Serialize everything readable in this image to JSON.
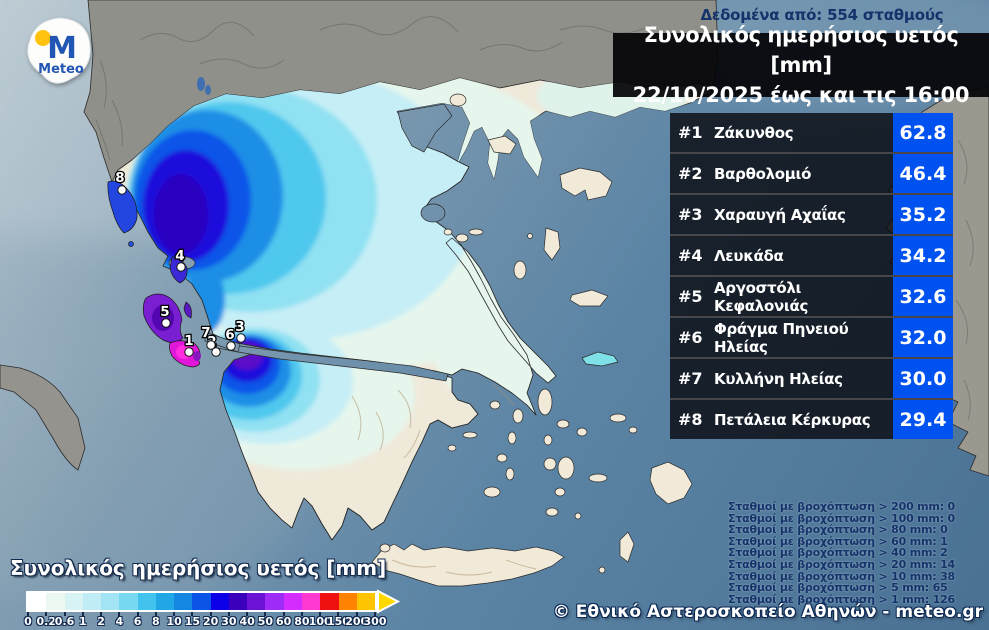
{
  "logo": {
    "brand": "Meteo",
    "letter": "M"
  },
  "header": {
    "stations_note": "Δεδομένα από: 554 σταθμούς",
    "title_line1": "Συνολικός ημερήσιος υετός [mm]",
    "title_line2": "22/10/2025 έως και τις 16:00"
  },
  "ranking": {
    "rows": [
      {
        "rank": "#1",
        "name": "Ζάκυνθος",
        "value": "62.8"
      },
      {
        "rank": "#2",
        "name": "Βαρθολομιό",
        "value": "46.4"
      },
      {
        "rank": "#3",
        "name": "Χαραυγή Αχαΐας",
        "value": "35.2"
      },
      {
        "rank": "#4",
        "name": "Λευκάδα",
        "value": "34.2"
      },
      {
        "rank": "#5",
        "name": "Αργοστόλι Κεφαλονιάς",
        "value": "32.6"
      },
      {
        "rank": "#6",
        "name": "Φράγμα Πηνειού Ηλείας",
        "value": "32.0"
      },
      {
        "rank": "#7",
        "name": "Κυλλήνη Ηλείας",
        "value": "30.0"
      },
      {
        "rank": "#8",
        "name": "Πετάλεια Κέρκυρας",
        "value": "29.4"
      }
    ]
  },
  "stats_lines": [
    "Σταθμοί με βροχόπτωση > 200 mm: 0",
    "Σταθμοί με βροχόπτωση > 100 mm: 0",
    "Σταθμοί με βροχόπτωση > 80 mm: 0",
    "Σταθμοί με βροχόπτωση > 60 mm: 1",
    "Σταθμοί με βροχόπτωση > 40 mm: 2",
    "Σταθμοί με βροχόπτωση > 20 mm: 14",
    "Σταθμοί με βροχόπτωση > 10 mm: 38",
    "Σταθμοί με βροχόπτωση > 5 mm: 65",
    "Σταθμοί με βροχόπτωση > 1 mm: 126"
  ],
  "legend": {
    "title": "Συνολικός ημερήσιος υετός [mm]",
    "ticks": [
      "0",
      "0.2",
      "0.6",
      "1",
      "2",
      "4",
      "6",
      "8",
      "10",
      "15",
      "20",
      "30",
      "40",
      "50",
      "60",
      "80",
      "100",
      "150",
      "200",
      "300"
    ],
    "colors": [
      "#ffffff",
      "#eaf8f0",
      "#d8f3f3",
      "#c0ecf6",
      "#a2e4f3",
      "#76d9f1",
      "#42c3ed",
      "#21a7e6",
      "#1487e2",
      "#0c53e8",
      "#0b00e8",
      "#3a00bc",
      "#6c12d4",
      "#9e2cf6",
      "#d42bff",
      "#ff38cf",
      "#ef1010",
      "#ff8200",
      "#ffc400"
    ],
    "arrow_color": "#ffd900"
  },
  "map": {
    "markers": [
      {
        "n": "1",
        "dot": [
          189,
          352
        ],
        "label": [
          189,
          341
        ]
      },
      {
        "n": "2",
        "dot": [
          216,
          352
        ],
        "label": [
          212,
          342
        ]
      },
      {
        "n": "3",
        "dot": [
          241,
          338
        ],
        "label": [
          240,
          327
        ]
      },
      {
        "n": "4",
        "dot": [
          181,
          267
        ],
        "label": [
          180,
          256
        ]
      },
      {
        "n": "5",
        "dot": [
          166,
          323
        ],
        "label": [
          165,
          312
        ]
      },
      {
        "n": "6",
        "dot": [
          231,
          346
        ],
        "label": [
          230,
          335
        ]
      },
      {
        "n": "7",
        "dot": [
          211,
          345
        ],
        "label": [
          206,
          333
        ]
      },
      {
        "n": "8",
        "dot": [
          122,
          190
        ],
        "label": [
          120,
          178
        ]
      }
    ]
  },
  "footer": {
    "copyright": "© Εθνικό Αστεροσκοπείο Αθηνών - meteo.gr"
  },
  "colors": {
    "value_cell_bg": "#0052f0",
    "navy_text": "#15336b",
    "panel_bg": "rgba(3,3,6,0.93)"
  }
}
